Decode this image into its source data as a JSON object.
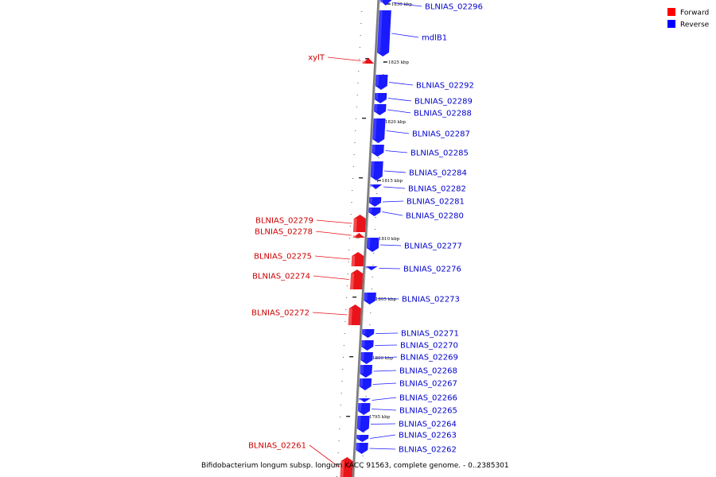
{
  "caption": "Bifidobacterium longum subsp. longum KACC 91563, complete genome. - 0..2385301",
  "legend": [
    {
      "label": "Forward",
      "color": "#ff0000"
    },
    {
      "label": "Reverse",
      "color": "#0000ff"
    }
  ],
  "colors": {
    "backbone": "#9a9a9a",
    "forward": "#e8141a",
    "reverse": "#1a1aff",
    "forward_text": "#cc0000",
    "reverse_text": "#0000cc"
  },
  "ticks": [
    "1830 kbp",
    "1825 kbp",
    "1820 kbp",
    "1815 kbp",
    "1810 kbp",
    "1805 kbp",
    "1800 kbp",
    "1795 kbp"
  ],
  "reverse_genes": [
    "BLNIAS_02296",
    "mdlB1",
    "BLNIAS_02292",
    "BLNIAS_02289",
    "BLNIAS_02288",
    "BLNIAS_02287",
    "BLNIAS_02285",
    "BLNIAS_02284",
    "BLNIAS_02282",
    "BLNIAS_02281",
    "BLNIAS_02280",
    "BLNIAS_02277",
    "BLNIAS_02276",
    "BLNIAS_02273",
    "BLNIAS_02271",
    "BLNIAS_02270",
    "BLNIAS_02269",
    "BLNIAS_02268",
    "BLNIAS_02267",
    "BLNIAS_02266",
    "BLNIAS_02265",
    "BLNIAS_02264",
    "BLNIAS_02263",
    "BLNIAS_02262"
  ],
  "forward_genes": [
    "xylT",
    "BLNIAS_02279",
    "BLNIAS_02278",
    "BLNIAS_02275",
    "BLNIAS_02274",
    "BLNIAS_02272",
    "BLNIAS_02261"
  ]
}
